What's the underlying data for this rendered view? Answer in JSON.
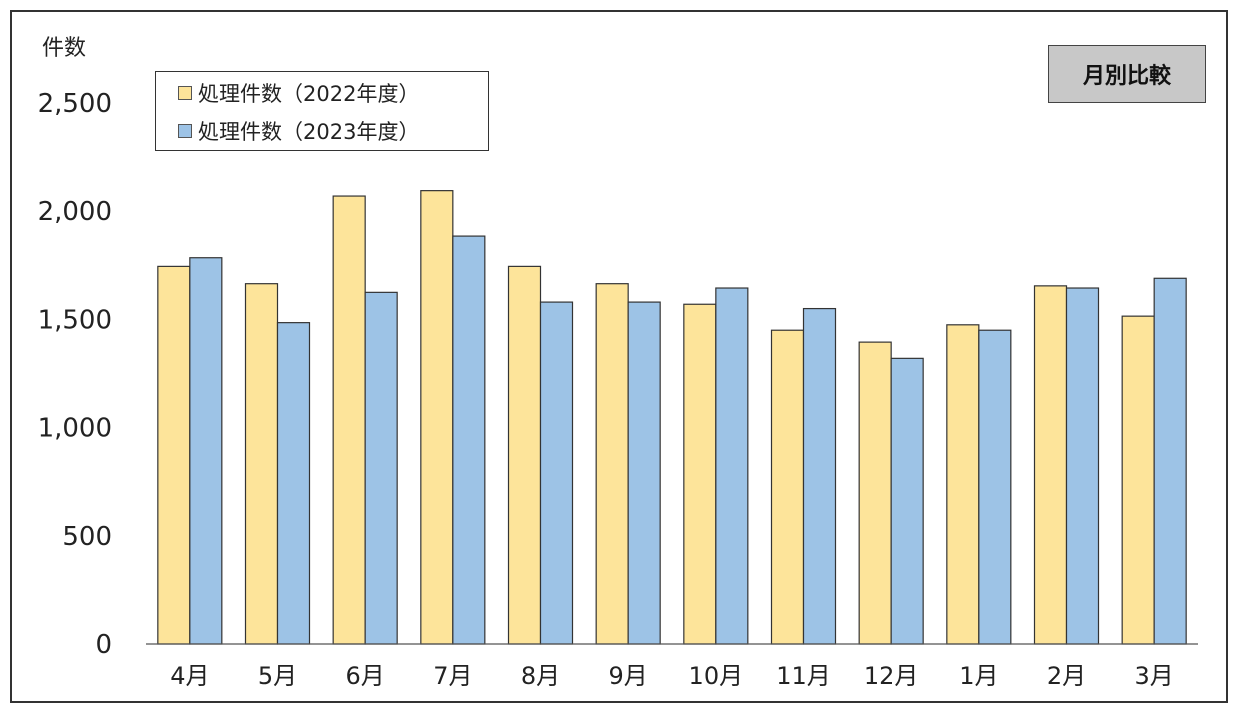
{
  "badge": {
    "label": "月別比較"
  },
  "colors": {
    "series_2022": "#fde49a",
    "series_2023": "#9dc3e6",
    "border": "#333333"
  },
  "chart_data": {
    "type": "bar",
    "title": "",
    "unit_label": "件数",
    "xlabel": "",
    "ylabel": "件数",
    "ylim": [
      0,
      2500
    ],
    "y_ticks": [
      "0",
      "500",
      "1,000",
      "1,500",
      "2,000",
      "2,500"
    ],
    "y_tick_values": [
      0,
      500,
      1000,
      1500,
      2000,
      2500
    ],
    "grid": false,
    "legend_position": "top-left",
    "categories": [
      "4月",
      "5月",
      "6月",
      "7月",
      "8月",
      "9月",
      "10月",
      "11月",
      "12月",
      "1月",
      "2月",
      "3月"
    ],
    "series": [
      {
        "name": "処理件数（2022年度）",
        "color": "#fde49a",
        "values": [
          1745,
          1665,
          2070,
          2095,
          1745,
          1665,
          1570,
          1450,
          1395,
          1475,
          1655,
          1515
        ]
      },
      {
        "name": "処理件数（2023年度）",
        "color": "#9dc3e6",
        "values": [
          1785,
          1485,
          1625,
          1885,
          1580,
          1580,
          1645,
          1550,
          1320,
          1450,
          1645,
          1690
        ]
      }
    ]
  }
}
